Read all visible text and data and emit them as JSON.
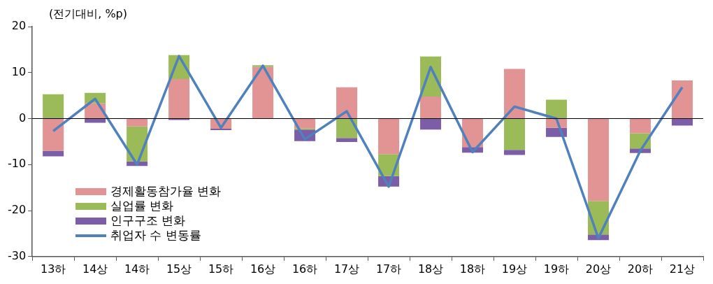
{
  "chart_data": {
    "type": "bar",
    "stacked": true,
    "ylabel": "(전기대비, %p)",
    "categories": [
      "13하",
      "14상",
      "14하",
      "15상",
      "15하",
      "16상",
      "16하",
      "17상",
      "17하",
      "18상",
      "18하",
      "19상",
      "19하",
      "20상",
      "20하",
      "21상"
    ],
    "series": [
      {
        "name": "경제활동참가율 변화",
        "color": "#e29393",
        "values": [
          -7.0,
          3.3,
          -1.7,
          8.6,
          -2.2,
          11.2,
          -2.1,
          6.8,
          -7.7,
          4.8,
          -6.2,
          10.8,
          -2.0,
          -17.9,
          -3.2,
          8.3
        ]
      },
      {
        "name": "실업률 변화",
        "color": "#9bbb59",
        "values": [
          5.3,
          2.3,
          -7.6,
          5.2,
          null,
          0.4,
          -0.3,
          -4.2,
          -4.8,
          8.7,
          0,
          -6.8,
          4.1,
          -7.3,
          -3.3,
          0
        ]
      },
      {
        "name": "인구구조 변화",
        "color": "#7b5ea7",
        "values": [
          -1.2,
          -0.9,
          -1.0,
          -0.3,
          -0.3,
          0,
          -2.5,
          -0.9,
          -2.3,
          -2.4,
          -1.2,
          -1.1,
          -2.0,
          -1.2,
          -1.0,
          -1.5
        ]
      },
      {
        "name": "취업자 수 변동률",
        "type": "line",
        "color": "#4f81bd",
        "values": [
          -2.7,
          4.3,
          -10.0,
          13.6,
          -2.0,
          11.5,
          -4.5,
          1.6,
          -14.8,
          11.2,
          -7.3,
          2.6,
          0,
          -26.0,
          -7.0,
          6.8
        ]
      }
    ],
    "ylim": [
      -30,
      20
    ],
    "yticks": [
      -30,
      -20,
      -10,
      0,
      10,
      20
    ],
    "grid": false,
    "legend": "bottom left",
    "marker": "none",
    "ref_lines": [
      {
        "axis": "y",
        "value": 0,
        "color": "#000000"
      }
    ]
  }
}
